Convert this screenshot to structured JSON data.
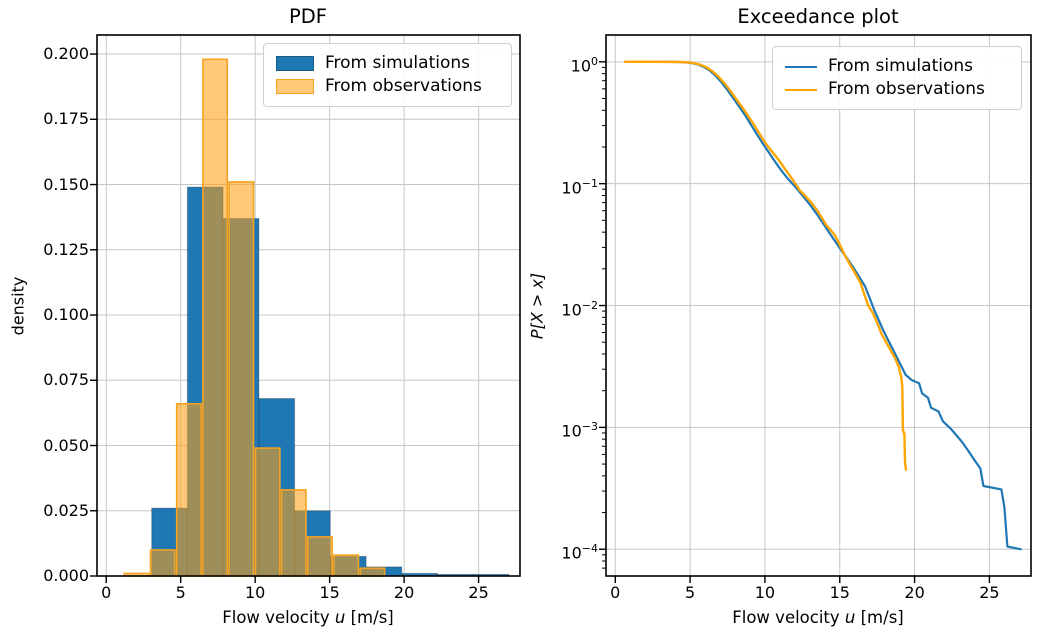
{
  "figure": {
    "background": "#ffffff"
  },
  "chart_data": [
    {
      "type": "bar",
      "title": "PDF",
      "xlabel": "Flow velocity u [m/s]",
      "xlabel_parts": [
        "Flow velocity ",
        "u",
        " [m/s]"
      ],
      "ylabel": "density",
      "xlim": [
        -0.62,
        27.78
      ],
      "ylim": [
        0,
        0.2073
      ],
      "xticks": [
        0,
        5,
        10,
        15,
        20,
        25
      ],
      "yticks": [
        0,
        0.025,
        0.05,
        0.075,
        0.1,
        0.125,
        0.15,
        0.175,
        0.2
      ],
      "ytick_labels": [
        "0.000",
        "0.025",
        "0.050",
        "0.075",
        "0.100",
        "0.125",
        "0.150",
        "0.175",
        "0.200"
      ],
      "grid": true,
      "legend_position": "upper right",
      "series": [
        {
          "key": "simulations",
          "name": "From simulations",
          "color": "#1f77b4",
          "fill": "#1f77b4",
          "edge": "rgba(0,0,0,0.25)",
          "edge_width": 1,
          "rwidth": 1.0,
          "bin_start": 3.05,
          "bin_width": 2.4,
          "heights": [
            0.026,
            0.149,
            0.137,
            0.068,
            0.025,
            0.0075,
            0.0035,
            0.001,
            0.0006,
            0.0006
          ]
        },
        {
          "key": "observations",
          "name": "From observations",
          "color": "#ffa500",
          "fill": "rgba(255,160,20,0.57)",
          "edge": "#f5a321",
          "edge_width": 1.6,
          "rwidth": 0.93,
          "bin_start": 1.15,
          "bin_width": 1.76,
          "heights": [
            0.001,
            0.01,
            0.066,
            0.198,
            0.151,
            0.049,
            0.033,
            0.015,
            0.008,
            0.003
          ]
        }
      ]
    },
    {
      "type": "line",
      "title": "Exceedance plot",
      "xlabel": "Flow velocity u [m/s]",
      "xlabel_parts": [
        "Flow velocity ",
        "u",
        " [m/s]"
      ],
      "ylabel": "P[X > x]",
      "yscale": "log",
      "xlim": [
        -0.62,
        27.78
      ],
      "ylim": [
        6.03e-05,
        1.66
      ],
      "xticks": [
        0,
        5,
        10,
        15,
        20,
        25
      ],
      "ytick_exponents": [
        0,
        -1,
        -2,
        -3,
        -4
      ],
      "grid": true,
      "legend_position": "upper right",
      "series": [
        {
          "key": "simulations",
          "name": "From simulations",
          "color": "#1f77b4",
          "line_width": 2.2,
          "points": [
            [
              0.65,
              1.0
            ],
            [
              2.0,
              1.0
            ],
            [
              3.5,
              0.999
            ],
            [
              4.2,
              0.997
            ],
            [
              4.7,
              0.99
            ],
            [
              5.1,
              0.978
            ],
            [
              5.5,
              0.952
            ],
            [
              5.9,
              0.91
            ],
            [
              6.3,
              0.85
            ],
            [
              6.7,
              0.77
            ],
            [
              7.1,
              0.68
            ],
            [
              7.5,
              0.585
            ],
            [
              7.9,
              0.5
            ],
            [
              8.3,
              0.425
            ],
            [
              8.7,
              0.36
            ],
            [
              9.1,
              0.3
            ],
            [
              9.5,
              0.25
            ],
            [
              9.9,
              0.21
            ],
            [
              10.3,
              0.178
            ],
            [
              10.7,
              0.15
            ],
            [
              11.1,
              0.128
            ],
            [
              11.5,
              0.111
            ],
            [
              11.9,
              0.098
            ],
            [
              12.3,
              0.086
            ],
            [
              12.7,
              0.075
            ],
            [
              13.1,
              0.065
            ],
            [
              13.5,
              0.0555
            ],
            [
              13.9,
              0.047
            ],
            [
              14.3,
              0.0395
            ],
            [
              14.7,
              0.0335
            ],
            [
              15.1,
              0.0285
            ],
            [
              15.5,
              0.0243
            ],
            [
              15.9,
              0.0206
            ],
            [
              16.3,
              0.0172
            ],
            [
              16.7,
              0.0143
            ],
            [
              17.0,
              0.0115
            ],
            [
              17.3,
              0.0092
            ],
            [
              17.6,
              0.0076
            ],
            [
              17.9,
              0.0063
            ],
            [
              18.2,
              0.0053
            ],
            [
              18.5,
              0.0045
            ],
            [
              18.8,
              0.0038
            ],
            [
              19.1,
              0.0032
            ],
            [
              19.4,
              0.0027
            ],
            [
              19.8,
              0.00245
            ],
            [
              20.3,
              0.0023
            ],
            [
              20.5,
              0.0019
            ],
            [
              20.9,
              0.00175
            ],
            [
              21.1,
              0.00145
            ],
            [
              21.6,
              0.00135
            ],
            [
              21.9,
              0.00112
            ],
            [
              22.4,
              0.00098
            ],
            [
              22.8,
              0.00086
            ],
            [
              23.2,
              0.00075
            ],
            [
              23.6,
              0.00064
            ],
            [
              24.0,
              0.00054
            ],
            [
              24.4,
              0.00046
            ],
            [
              24.6,
              0.00033
            ],
            [
              25.8,
              0.00031
            ],
            [
              26.0,
              0.00022
            ],
            [
              26.2,
              0.000105
            ],
            [
              27.1,
              0.0001
            ]
          ]
        },
        {
          "key": "observations",
          "name": "From observations",
          "color": "#ffa500",
          "line_width": 2.4,
          "points": [
            [
              0.65,
              1.0
            ],
            [
              2.5,
              1.0
            ],
            [
              3.8,
              0.999
            ],
            [
              4.4,
              0.996
            ],
            [
              4.9,
              0.989
            ],
            [
              5.3,
              0.973
            ],
            [
              5.7,
              0.945
            ],
            [
              6.1,
              0.9
            ],
            [
              6.5,
              0.835
            ],
            [
              6.9,
              0.755
            ],
            [
              7.3,
              0.665
            ],
            [
              7.7,
              0.575
            ],
            [
              8.1,
              0.49
            ],
            [
              8.5,
              0.42
            ],
            [
              8.9,
              0.355
            ],
            [
              9.3,
              0.3
            ],
            [
              9.7,
              0.25
            ],
            [
              10.1,
              0.21
            ],
            [
              10.5,
              0.182
            ],
            [
              10.9,
              0.158
            ],
            [
              11.3,
              0.134
            ],
            [
              11.7,
              0.115
            ],
            [
              12.0,
              0.101
            ],
            [
              12.3,
              0.089
            ],
            [
              12.7,
              0.079
            ],
            [
              13.1,
              0.07
            ],
            [
              13.5,
              0.06
            ],
            [
              13.8,
              0.0525
            ],
            [
              14.1,
              0.0455
            ],
            [
              14.4,
              0.0415
            ],
            [
              14.7,
              0.0372
            ],
            [
              15.0,
              0.0315
            ],
            [
              15.3,
              0.0265
            ],
            [
              15.7,
              0.0215
            ],
            [
              16.1,
              0.0178
            ],
            [
              16.4,
              0.0152
            ],
            [
              16.6,
              0.0128
            ],
            [
              16.9,
              0.01
            ],
            [
              17.2,
              0.0087
            ],
            [
              17.5,
              0.0072
            ],
            [
              17.8,
              0.0058
            ],
            [
              18.1,
              0.005
            ],
            [
              18.4,
              0.0043
            ],
            [
              18.7,
              0.0037
            ],
            [
              18.95,
              0.0031
            ],
            [
              19.1,
              0.0026
            ],
            [
              19.18,
              0.0022
            ],
            [
              19.22,
              0.00095
            ],
            [
              19.32,
              0.00088
            ],
            [
              19.36,
              0.00052
            ],
            [
              19.42,
              0.00045
            ]
          ]
        }
      ]
    }
  ]
}
